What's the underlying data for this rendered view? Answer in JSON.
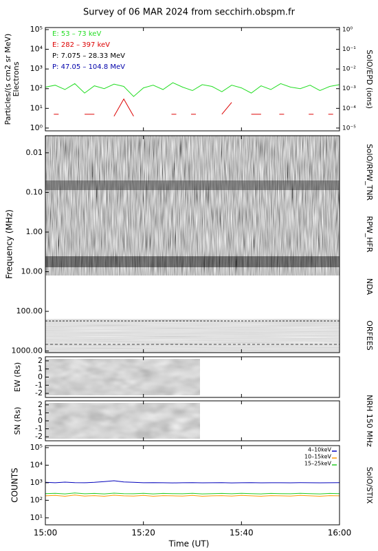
{
  "figure": {
    "title": "Survey of 06 MAR 2024 from secchirh.obspm.fr",
    "xlabel": "Time (UT)",
    "xlim": [
      "15:00",
      "16:00"
    ],
    "xticks": [
      "15:00",
      "15:20",
      "15:40",
      "16:00"
    ],
    "nrh_label": "NRH 150 MHz"
  },
  "chart_data": [
    {
      "type": "line",
      "log": true,
      "ylabel": "Particles/(s cm2 sr MeV)",
      "ylabel2": "Electrons",
      "side_label": "SolO/EPD (ions)",
      "ylim": [
        0.72,
        127000
      ],
      "yticks": [
        {
          "value": 1,
          "label": "10⁰"
        },
        {
          "value": 10,
          "label": "10¹"
        },
        {
          "value": 100,
          "label": "10²"
        },
        {
          "value": 1000,
          "label": "10³"
        },
        {
          "value": 10000,
          "label": "10⁴"
        },
        {
          "value": 100000,
          "label": "10⁵"
        }
      ],
      "y2lim": [
        7.2e-06,
        1.27
      ],
      "y2ticks": [
        {
          "value": 1e-05,
          "label": "10⁻⁵"
        },
        {
          "value": 0.0001,
          "label": "10⁻⁴"
        },
        {
          "value": 0.001,
          "label": "10⁻³"
        },
        {
          "value": 0.01,
          "label": "10⁻²"
        },
        {
          "value": 0.1,
          "label": "10⁻¹"
        },
        {
          "value": 1,
          "label": "10⁰"
        }
      ],
      "x": [
        "15:00",
        "15:02",
        "15:04",
        "15:06",
        "15:08",
        "15:10",
        "15:12",
        "15:14",
        "15:16",
        "15:18",
        "15:20",
        "15:22",
        "15:24",
        "15:26",
        "15:28",
        "15:30",
        "15:32",
        "15:34",
        "15:36",
        "15:38",
        "15:40",
        "15:42",
        "15:44",
        "15:46",
        "15:48",
        "15:50",
        "15:52",
        "15:54",
        "15:56",
        "15:58",
        "16:00"
      ],
      "series": [
        {
          "name": "E: 53 – 73 keV",
          "color": "#22dd22",
          "values": [
            120,
            150,
            90,
            180,
            60,
            140,
            100,
            170,
            130,
            40,
            110,
            150,
            90,
            200,
            120,
            80,
            160,
            130,
            70,
            150,
            110,
            60,
            140,
            90,
            180,
            120,
            100,
            150,
            80,
            130,
            160
          ]
        },
        {
          "name": "E: 282 – 397 keV",
          "color": "#dd0000",
          "values": [
            null,
            5,
            null,
            null,
            5,
            5,
            null,
            4,
            30,
            4,
            null,
            null,
            null,
            5,
            null,
            5,
            null,
            null,
            5,
            20,
            null,
            5,
            5,
            null,
            5,
            null,
            null,
            5,
            null,
            5,
            null
          ]
        },
        {
          "name": "P: 7.075 – 28.33 MeV",
          "color": "#000000",
          "values": [
            null,
            null,
            null,
            null,
            null,
            null,
            null,
            null,
            null,
            null,
            null,
            null,
            null,
            null,
            null,
            null,
            null,
            null,
            null,
            null,
            null,
            null,
            null,
            null,
            null,
            null,
            null,
            null,
            null,
            null,
            null
          ]
        },
        {
          "name": "P: 47.05 – 104.8 MeV",
          "color": "#0000aa",
          "values": [
            null,
            null,
            null,
            null,
            null,
            null,
            null,
            null,
            null,
            null,
            null,
            null,
            null,
            null,
            null,
            null,
            null,
            null,
            null,
            null,
            null,
            null,
            null,
            null,
            null,
            null,
            null,
            null,
            null,
            null,
            null
          ]
        }
      ]
    },
    {
      "type": "spectrogram",
      "log": true,
      "reversed": true,
      "ylabel": "Frequency (MHz)",
      "side_labels": [
        "SolO/RPW_TNR",
        "RPW_HFR",
        "NDA",
        "ORFEES"
      ],
      "ylim": [
        0.0037,
        1100
      ],
      "yticks": [
        {
          "value": 0.01,
          "label": "0.01"
        },
        {
          "value": 0.1,
          "label": "0.10"
        },
        {
          "value": 1,
          "label": "1.00"
        },
        {
          "value": 10,
          "label": "10.00"
        },
        {
          "value": 100,
          "label": "100.00"
        },
        {
          "value": 1000,
          "label": "1000.00"
        }
      ]
    },
    {
      "type": "image",
      "ylabel": "EW (Rs)",
      "ylim": [
        -2.5,
        2.5
      ],
      "yticks": [
        2,
        1,
        0,
        -1,
        -2
      ]
    },
    {
      "type": "image",
      "ylabel": "SN (Rs)",
      "ylim": [
        -2.5,
        2.5
      ],
      "yticks": [
        2,
        1,
        0,
        -1,
        -2
      ]
    },
    {
      "type": "line",
      "log": true,
      "ylabel": "COUNTS",
      "side_label": "SolO/STIX",
      "legend": "upper right",
      "ylim": [
        4,
        130000
      ],
      "yticks": [
        {
          "value": 10,
          "label": "10¹"
        },
        {
          "value": 100,
          "label": "10²"
        },
        {
          "value": 1000,
          "label": "10³"
        },
        {
          "value": 10000,
          "label": "10⁴"
        },
        {
          "value": 100000,
          "label": "10⁵"
        }
      ],
      "x": [
        "15:00",
        "15:02",
        "15:04",
        "15:06",
        "15:08",
        "15:10",
        "15:12",
        "15:14",
        "15:16",
        "15:18",
        "15:20",
        "15:22",
        "15:24",
        "15:26",
        "15:28",
        "15:30",
        "15:32",
        "15:34",
        "15:36",
        "15:38",
        "15:40",
        "15:42",
        "15:44",
        "15:46",
        "15:48",
        "15:50",
        "15:52",
        "15:54",
        "15:56",
        "15:58",
        "16:00"
      ],
      "series": [
        {
          "name": "4–10keV",
          "color": "#0000bb",
          "values": [
            1050,
            1000,
            1080,
            1020,
            1000,
            1050,
            1150,
            1300,
            1100,
            1050,
            1000,
            1020,
            1000,
            980,
            1000,
            1020,
            990,
            1000,
            1010,
            980,
            1000,
            1020,
            990,
            1000,
            1000,
            990,
            1010,
            1000,
            990,
            1000,
            1020
          ]
        },
        {
          "name": "10–15keV",
          "color": "#ff9900",
          "values": [
            180,
            190,
            170,
            200,
            175,
            185,
            170,
            195,
            180,
            175,
            190,
            170,
            185,
            180,
            175,
            190,
            170,
            180,
            185,
            175,
            190,
            180,
            170,
            185,
            180,
            175,
            190,
            180,
            170,
            185,
            180
          ]
        },
        {
          "name": "15–25keV",
          "color": "#22cc22",
          "values": [
            240,
            250,
            230,
            260,
            235,
            245,
            230,
            255,
            240,
            235,
            250,
            230,
            245,
            240,
            235,
            250,
            230,
            240,
            245,
            235,
            250,
            240,
            230,
            245,
            240,
            235,
            250,
            240,
            230,
            245,
            240
          ]
        }
      ]
    }
  ]
}
